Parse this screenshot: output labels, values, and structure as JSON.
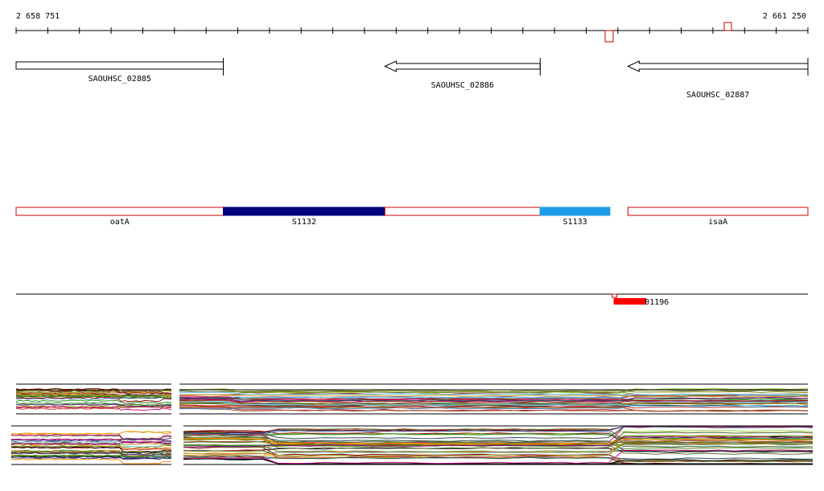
{
  "axis": {
    "start_label": "2 658 751",
    "end_label": "2 661 250",
    "start": 2658751,
    "end": 2661250
  },
  "genes": [
    {
      "label": "SAOUHSC_02885",
      "start": 2658751,
      "end": 2659405,
      "strand": "+"
    },
    {
      "label": "SAOUHSC_02886",
      "start": 2659915,
      "end": 2660405,
      "strand": "-"
    },
    {
      "label": "SAOUHSC_02887",
      "start": 2660682,
      "end": 2661250,
      "strand": "-"
    }
  ],
  "annotations": [
    {
      "label": "oatA",
      "start": 2658751,
      "end": 2659405,
      "fill": "#ffffff",
      "stroke": "#cc0000"
    },
    {
      "label": "S1132",
      "start": 2659405,
      "end": 2659915,
      "fill": "#000080",
      "stroke": "#000080"
    },
    {
      "label": "",
      "start": 2659915,
      "end": 2660405,
      "fill": "#ffffff",
      "stroke": "#cc0000"
    },
    {
      "label": "S1133",
      "start": 2660405,
      "end": 2660625,
      "fill": "#1e9be8",
      "stroke": "#1e9be8"
    },
    {
      "label": "isaA",
      "start": 2660682,
      "end": 2661250,
      "fill": "#ffffff",
      "stroke": "#cc0000"
    }
  ],
  "features": [
    {
      "label": "01196",
      "start": 2660637,
      "end": 2660740
    }
  ],
  "colors": {
    "red": "#cc0000",
    "navy": "#000080",
    "sky": "#1e9be8"
  }
}
